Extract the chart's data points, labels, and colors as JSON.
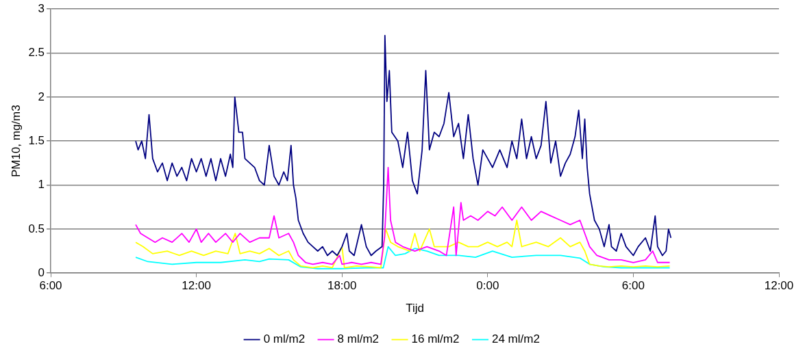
{
  "chart_data": {
    "type": "line",
    "xlabel": "Tijd",
    "ylabel": "PM10, mg/m3",
    "xlim": [
      "--01-01T06:00",
      "--01-02T12:00"
    ],
    "xticks": [
      {
        "value": "--01-01T06:00",
        "label": "6:00"
      },
      {
        "value": "--01-01T12:00",
        "label": "12:00"
      },
      {
        "value": "--01-01T18:00",
        "label": "18:00"
      },
      {
        "value": "--01-02T00:00",
        "label": "0:00"
      },
      {
        "value": "--01-02T06:00",
        "label": "6:00"
      },
      {
        "value": "--01-02T12:00",
        "label": "12:00"
      }
    ],
    "ylim": [
      0,
      3
    ],
    "yticks": [
      0,
      0.5,
      1,
      1.5,
      2,
      2.5,
      3
    ],
    "grid": "y",
    "legend": "bottom",
    "marker": "none",
    "line_style": "solid",
    "x": [
      "--01-01T09:30",
      "--01-01T09:36",
      "--01-01T09:45",
      "--01-01T09:54",
      "--01-01T10:03",
      "--01-01T10:12",
      "--01-01T10:24",
      "--01-01T10:36",
      "--01-01T10:48",
      "--01-01T11:00",
      "--01-01T11:12",
      "--01-01T11:24",
      "--01-01T11:36",
      "--01-01T11:48",
      "--01-01T12:00",
      "--01-01T12:12",
      "--01-01T12:24",
      "--01-01T12:36",
      "--01-01T12:48",
      "--01-01T13:00",
      "--01-01T13:12",
      "--01-01T13:24",
      "--01-01T13:30",
      "--01-01T13:35",
      "--01-01T13:45",
      "--01-01T13:54",
      "--01-01T14:00",
      "--01-01T14:12",
      "--01-01T14:24",
      "--01-01T14:36",
      "--01-01T14:48",
      "--01-01T15:00",
      "--01-01T15:12",
      "--01-01T15:24",
      "--01-01T15:36",
      "--01-01T15:45",
      "--01-01T15:54",
      "--01-01T16:00",
      "--01-01T16:06",
      "--01-01T16:12",
      "--01-01T16:24",
      "--01-01T16:36",
      "--01-01T16:48",
      "--01-01T17:00",
      "--01-01T17:12",
      "--01-01T17:24",
      "--01-01T17:36",
      "--01-01T17:48",
      "--01-01T18:00",
      "--01-01T18:12",
      "--01-01T18:18",
      "--01-01T18:30",
      "--01-01T18:48",
      "--01-01T19:00",
      "--01-01T19:12",
      "--01-01T19:24",
      "--01-01T19:39",
      "--01-01T19:43",
      "--01-01T19:46",
      "--01-01T19:51",
      "--01-01T19:57",
      "--01-01T20:03",
      "--01-01T20:18",
      "--01-01T20:30",
      "--01-01T20:42",
      "--01-01T20:54",
      "--01-01T21:06",
      "--01-01T21:18",
      "--01-01T21:27",
      "--01-01T21:36",
      "--01-01T21:48",
      "--01-01T22:00",
      "--01-01T22:12",
      "--01-01T22:24",
      "--01-01T22:36",
      "--01-01T22:48",
      "--01-01T23:00",
      "--01-01T23:12",
      "--01-01T23:24",
      "--01-01T23:36",
      "--01-01T23:48",
      "--01-02T00:00",
      "--01-02T00:12",
      "--01-02T00:30",
      "--01-02T00:48",
      "--01-02T01:00",
      "--01-02T01:12",
      "--01-02T01:24",
      "--01-02T01:36",
      "--01-02T01:48",
      "--01-02T02:00",
      "--01-02T02:12",
      "--01-02T02:24",
      "--01-02T02:36",
      "--01-02T02:48",
      "--01-02T03:00",
      "--01-02T03:12",
      "--01-02T03:24",
      "--01-02T03:36",
      "--01-02T03:45",
      "--01-02T03:54",
      "--01-02T04:00",
      "--01-02T04:06",
      "--01-02T04:12",
      "--01-02T04:24",
      "--01-02T04:36",
      "--01-02T04:48",
      "--01-02T05:00",
      "--01-02T05:06",
      "--01-02T05:18",
      "--01-02T05:30",
      "--01-02T05:42",
      "--01-02T06:00",
      "--01-02T06:12",
      "--01-02T06:30",
      "--01-02T06:42",
      "--01-02T06:54",
      "--01-02T07:00",
      "--01-02T07:12",
      "--01-02T07:21",
      "--01-02T07:27",
      "--01-02T07:33"
    ],
    "series": [
      {
        "name": "0 ml/m2",
        "color": "#000080",
        "values": [
          1.5,
          1.4,
          1.5,
          1.3,
          1.8,
          1.3,
          1.15,
          1.25,
          1.05,
          1.25,
          1.1,
          1.2,
          1.05,
          1.3,
          1.15,
          1.3,
          1.1,
          1.3,
          1.05,
          1.3,
          1.1,
          1.35,
          1.2,
          2.0,
          1.6,
          1.6,
          1.3,
          1.25,
          1.2,
          1.05,
          1.0,
          1.45,
          1.1,
          1.0,
          1.15,
          1.05,
          1.45,
          1.0,
          0.85,
          0.6,
          0.45,
          0.35,
          0.3,
          0.25,
          0.3,
          0.2,
          0.25,
          0.2,
          0.3,
          0.45,
          0.25,
          0.2,
          0.55,
          0.3,
          0.2,
          0.25,
          0.3,
          1.0,
          2.7,
          1.95,
          2.3,
          1.6,
          1.5,
          1.2,
          1.6,
          1.05,
          0.9,
          1.4,
          2.3,
          1.4,
          1.6,
          1.55,
          1.7,
          2.05,
          1.55,
          1.7,
          1.3,
          1.8,
          1.3,
          1.0,
          1.4,
          1.3,
          1.2,
          1.4,
          1.2,
          1.5,
          1.3,
          1.75,
          1.3,
          1.55,
          1.3,
          1.45,
          1.95,
          1.25,
          1.5,
          1.1,
          1.25,
          1.35,
          1.55,
          1.85,
          1.3,
          1.75,
          1.2,
          0.9,
          0.6,
          0.5,
          0.3,
          0.55,
          0.3,
          0.25,
          0.45,
          0.3,
          0.2,
          0.3,
          0.4,
          0.25,
          0.65,
          0.3,
          0.2,
          0.25,
          0.5,
          0.4
        ]
      },
      {
        "name": "8 ml/m2",
        "color": "#ff00ff",
        "x": [
          "--01-01T09:30",
          "--01-01T09:42",
          "--01-01T10:00",
          "--01-01T10:18",
          "--01-01T10:36",
          "--01-01T11:00",
          "--01-01T11:24",
          "--01-01T11:42",
          "--01-01T12:00",
          "--01-01T12:12",
          "--01-01T12:30",
          "--01-01T12:48",
          "--01-01T13:12",
          "--01-01T13:30",
          "--01-01T13:48",
          "--01-01T14:12",
          "--01-01T14:36",
          "--01-01T15:00",
          "--01-01T15:12",
          "--01-01T15:24",
          "--01-01T15:48",
          "--01-01T16:00",
          "--01-01T16:12",
          "--01-01T16:30",
          "--01-01T16:48",
          "--01-01T17:12",
          "--01-01T17:36",
          "--01-01T17:54",
          "--01-01T18:00",
          "--01-01T18:24",
          "--01-01T18:48",
          "--01-01T19:12",
          "--01-01T19:36",
          "--01-01T19:45",
          "--01-01T19:54",
          "--01-01T20:00",
          "--01-01T20:12",
          "--01-01T20:30",
          "--01-01T21:00",
          "--01-01T21:30",
          "--01-01T22:00",
          "--01-01T22:18",
          "--01-01T22:36",
          "--01-01T22:42",
          "--01-01T22:54",
          "--01-01T23:00",
          "--01-01T23:18",
          "--01-01T23:36",
          "--01-02T00:00",
          "--01-02T00:18",
          "--01-02T00:36",
          "--01-02T01:00",
          "--01-02T01:24",
          "--01-02T01:48",
          "--01-02T02:12",
          "--01-02T02:36",
          "--01-02T03:00",
          "--01-02T03:24",
          "--01-02T03:48",
          "--01-02T04:00",
          "--01-02T04:12",
          "--01-02T04:30",
          "--01-02T05:00",
          "--01-02T05:30",
          "--01-02T06:00",
          "--01-02T06:30",
          "--01-02T06:48",
          "--01-02T07:00",
          "--01-02T07:30"
        ],
        "values": [
          0.55,
          0.45,
          0.4,
          0.35,
          0.4,
          0.35,
          0.45,
          0.35,
          0.5,
          0.35,
          0.45,
          0.35,
          0.45,
          0.35,
          0.45,
          0.35,
          0.4,
          0.4,
          0.65,
          0.4,
          0.45,
          0.35,
          0.2,
          0.12,
          0.1,
          0.12,
          0.1,
          0.2,
          0.1,
          0.12,
          0.1,
          0.12,
          0.1,
          0.4,
          1.2,
          0.6,
          0.35,
          0.3,
          0.25,
          0.3,
          0.25,
          0.2,
          0.75,
          0.2,
          0.8,
          0.6,
          0.65,
          0.6,
          0.7,
          0.65,
          0.75,
          0.6,
          0.75,
          0.6,
          0.7,
          0.65,
          0.6,
          0.55,
          0.6,
          0.45,
          0.3,
          0.2,
          0.15,
          0.15,
          0.12,
          0.15,
          0.25,
          0.12,
          0.12
        ]
      },
      {
        "name": "16 ml/m2",
        "color": "#ffff00",
        "x": [
          "--01-01T09:30",
          "--01-01T09:48",
          "--01-01T10:12",
          "--01-01T10:48",
          "--01-01T11:18",
          "--01-01T11:48",
          "--01-01T12:18",
          "--01-01T12:48",
          "--01-01T13:18",
          "--01-01T13:36",
          "--01-01T13:48",
          "--01-01T14:12",
          "--01-01T14:36",
          "--01-01T15:00",
          "--01-01T15:24",
          "--01-01T15:48",
          "--01-01T16:00",
          "--01-01T16:18",
          "--01-01T16:48",
          "--01-01T17:12",
          "--01-01T17:36",
          "--01-01T18:00",
          "--01-01T18:06",
          "--01-01T18:36",
          "--01-01T19:12",
          "--01-01T19:36",
          "--01-01T19:48",
          "--01-01T20:00",
          "--01-01T20:18",
          "--01-01T20:48",
          "--01-01T21:00",
          "--01-01T21:12",
          "--01-01T21:36",
          "--01-01T21:48",
          "--01-01T22:24",
          "--01-01T22:48",
          "--01-01T23:12",
          "--01-01T23:36",
          "--01-02T00:00",
          "--01-02T00:24",
          "--01-02T00:48",
          "--01-02T01:00",
          "--01-02T01:12",
          "--01-02T01:24",
          "--01-02T02:00",
          "--01-02T02:30",
          "--01-02T03:00",
          "--01-02T03:24",
          "--01-02T03:48",
          "--01-02T04:00",
          "--01-02T04:12",
          "--01-02T04:36",
          "--01-02T05:00",
          "--01-02T05:30",
          "--01-02T06:00",
          "--01-02T06:30",
          "--01-02T07:00",
          "--01-02T07:30"
        ],
        "values": [
          0.35,
          0.3,
          0.22,
          0.25,
          0.2,
          0.25,
          0.2,
          0.25,
          0.22,
          0.45,
          0.22,
          0.25,
          0.22,
          0.28,
          0.2,
          0.25,
          0.15,
          0.08,
          0.06,
          0.08,
          0.06,
          0.3,
          0.06,
          0.08,
          0.07,
          0.06,
          0.5,
          0.35,
          0.3,
          0.25,
          0.45,
          0.25,
          0.5,
          0.3,
          0.3,
          0.35,
          0.3,
          0.3,
          0.35,
          0.3,
          0.35,
          0.3,
          0.6,
          0.3,
          0.35,
          0.3,
          0.4,
          0.3,
          0.35,
          0.25,
          0.1,
          0.08,
          0.07,
          0.08,
          0.07,
          0.08,
          0.07,
          0.08
        ]
      },
      {
        "name": "24 ml/m2",
        "color": "#00ffff",
        "x": [
          "--01-01T09:30",
          "--01-01T10:00",
          "--01-01T11:00",
          "--01-01T12:00",
          "--01-01T13:00",
          "--01-01T14:00",
          "--01-01T14:36",
          "--01-01T15:00",
          "--01-01T15:48",
          "--01-01T16:18",
          "--01-01T17:00",
          "--01-01T18:00",
          "--01-01T19:00",
          "--01-01T19:42",
          "--01-01T19:54",
          "--01-01T20:12",
          "--01-01T20:36",
          "--01-01T21:00",
          "--01-01T21:30",
          "--01-01T22:00",
          "--01-01T22:48",
          "--01-01T23:30",
          "--01-02T00:12",
          "--01-02T01:00",
          "--01-02T02:00",
          "--01-02T03:00",
          "--01-02T03:48",
          "--01-02T04:12",
          "--01-02T04:48",
          "--01-02T05:30",
          "--01-02T07:30"
        ],
        "values": [
          0.18,
          0.13,
          0.1,
          0.12,
          0.12,
          0.15,
          0.13,
          0.16,
          0.15,
          0.07,
          0.05,
          0.05,
          0.06,
          0.06,
          0.3,
          0.2,
          0.22,
          0.28,
          0.25,
          0.2,
          0.2,
          0.18,
          0.25,
          0.18,
          0.2,
          0.2,
          0.17,
          0.1,
          0.07,
          0.06,
          0.06
        ]
      }
    ]
  }
}
